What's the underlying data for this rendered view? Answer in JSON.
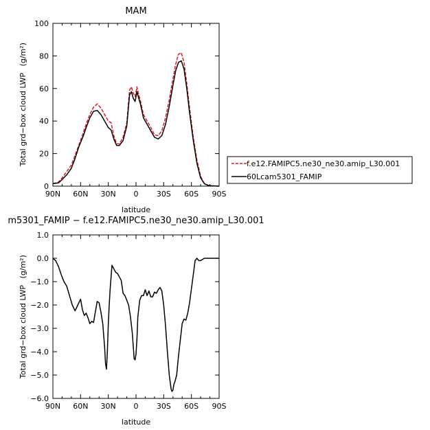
{
  "chart_data": [
    {
      "type": "line",
      "title": "MAM",
      "xlabel": "latitude",
      "ylabel": "Total grd−box cloud LWP",
      "ylabel_unit": "(g/m²)",
      "xlim": [
        90,
        -90
      ],
      "ylim": [
        0,
        100
      ],
      "x_ticks": [
        "90N",
        "60N",
        "30N",
        "0",
        "30S",
        "60S",
        "90S"
      ],
      "y_ticks": [
        "0",
        "20",
        "40",
        "60",
        "80",
        "100"
      ],
      "legend_position": "right",
      "series": [
        {
          "name": "f.e12.FAMIPC5.ne30_ne30.amip_L30.001",
          "color": "#e8141e",
          "style": "dashed",
          "x": [
            90,
            84,
            80,
            75,
            70,
            66,
            62,
            57,
            54,
            50,
            46,
            42,
            38,
            34,
            30,
            27,
            24,
            21,
            18,
            14,
            10,
            7,
            5,
            3,
            1,
            -1,
            -3,
            -5,
            -8,
            -12,
            -16,
            -20,
            -24,
            -28,
            -32,
            -36,
            -40,
            -43,
            -46,
            -49,
            -52,
            -55,
            -58,
            -62,
            -66,
            -70,
            -74,
            -78,
            -82,
            -86,
            -90
          ],
          "y": [
            1.5,
            2.5,
            5,
            9,
            13,
            19,
            25,
            33,
            38,
            44,
            48.5,
            50.5,
            48,
            44,
            40,
            39,
            31,
            26,
            26,
            30,
            39,
            59,
            61,
            57,
            55,
            61,
            56,
            52,
            44,
            40,
            36,
            31.5,
            31,
            34,
            42,
            53,
            66,
            75,
            81,
            82,
            76,
            63,
            48,
            30,
            16,
            6,
            1.5,
            0.5,
            0.2,
            0.1,
            0
          ],
          "label_marks": []
        },
        {
          "name": "60Lcam5301_FAMIP",
          "color": "#000000",
          "style": "solid",
          "x": [
            90,
            84,
            80,
            75,
            70,
            66,
            62,
            57,
            54,
            50,
            46,
            42,
            38,
            34,
            30,
            27,
            24,
            21,
            18,
            14,
            10,
            7,
            5,
            3,
            1,
            -1,
            -3,
            -5,
            -8,
            -12,
            -16,
            -20,
            -24,
            -28,
            -32,
            -36,
            -40,
            -43,
            -46,
            -49,
            -52,
            -55,
            -58,
            -62,
            -66,
            -70,
            -74,
            -78,
            -82,
            -86,
            -90
          ],
          "y": [
            1.5,
            2,
            4,
            7,
            11,
            17,
            24,
            31,
            36,
            42,
            46,
            46.5,
            44,
            40,
            36,
            34.5,
            29,
            25,
            25,
            28,
            37,
            56,
            58,
            54,
            52,
            58,
            54,
            50,
            42,
            38,
            34,
            30,
            29,
            31,
            38,
            49,
            62,
            71,
            76,
            77,
            72,
            60,
            45,
            28,
            14,
            5,
            1.5,
            0.5,
            0.2,
            0.1,
            0
          ],
          "label_marks": []
        }
      ]
    },
    {
      "type": "line",
      "title": "m5301_FAMIP − f.e12.FAMIPC5.ne30_ne30.amip_L30.001",
      "xlabel": "latitude",
      "ylabel": "Total grd−box cloud LWP",
      "ylabel_unit": "(g/m²)",
      "xlim": [
        90,
        -90
      ],
      "ylim": [
        -6,
        1
      ],
      "x_ticks": [
        "90N",
        "60N",
        "30N",
        "0",
        "30S",
        "60S",
        "90S"
      ],
      "y_ticks": [
        "−6.0",
        "−5.0",
        "−4.0",
        "−3.0",
        "−2.0",
        "−1.0",
        "0.0",
        "1.0"
      ],
      "series": [
        {
          "name": "",
          "color": "#000000",
          "style": "solid",
          "x": [
            90,
            87,
            84,
            81,
            78,
            75,
            72,
            69,
            66,
            63,
            60,
            58,
            56,
            54,
            52,
            50,
            48,
            46,
            44,
            42,
            40,
            38,
            36,
            34,
            33,
            32,
            31,
            30,
            29,
            28,
            26,
            24,
            22,
            20,
            18,
            16,
            14,
            12,
            10,
            8,
            6,
            4,
            2,
            1,
            0,
            -1,
            -2,
            -4,
            -6,
            -8,
            -10,
            -12,
            -14,
            -16,
            -18,
            -20,
            -22,
            -24,
            -26,
            -28,
            -30,
            -32,
            -34,
            -36,
            -38,
            -39,
            -40,
            -41,
            -42,
            -44,
            -46,
            -48,
            -50,
            -52,
            -54,
            -56,
            -58,
            -60,
            -62,
            -64,
            -66,
            -68,
            -70,
            -74,
            -78,
            -82,
            -86,
            -90
          ],
          "y": [
            0,
            -0.1,
            -0.35,
            -0.7,
            -1.0,
            -1.2,
            -1.6,
            -2.0,
            -2.25,
            -2.0,
            -1.75,
            -2.2,
            -2.45,
            -2.35,
            -2.55,
            -2.8,
            -2.7,
            -2.75,
            -2.3,
            -1.85,
            -1.9,
            -2.3,
            -2.8,
            -3.8,
            -4.5,
            -4.75,
            -4.0,
            -2.8,
            -2.0,
            -1.3,
            -0.3,
            -0.45,
            -0.6,
            -0.65,
            -0.8,
            -0.95,
            -1.5,
            -1.6,
            -1.8,
            -2.0,
            -2.5,
            -3.2,
            -4.3,
            -4.35,
            -4.1,
            -3.5,
            -2.5,
            -1.8,
            -1.6,
            -1.6,
            -1.35,
            -1.6,
            -1.4,
            -1.65,
            -1.65,
            -1.45,
            -1.5,
            -1.35,
            -1.25,
            -1.4,
            -2.0,
            -2.9,
            -4.0,
            -5.0,
            -5.6,
            -5.7,
            -5.65,
            -5.4,
            -5.3,
            -5.0,
            -4.2,
            -3.5,
            -2.8,
            -2.6,
            -2.65,
            -2.35,
            -1.9,
            -1.3,
            -0.7,
            -0.1,
            0,
            -0.1,
            -0.1,
            0,
            0,
            0,
            0,
            0
          ],
          "label_marks": []
        }
      ]
    }
  ]
}
